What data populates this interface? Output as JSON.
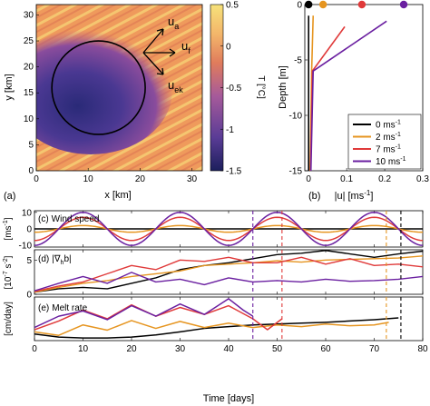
{
  "chart_data": [
    {
      "type": "heatmap",
      "panel_label": "(a)",
      "xlabel": "x [km]",
      "ylabel": "y [km]",
      "xticks": [
        0,
        10,
        20,
        30
      ],
      "yticks": [
        0,
        5,
        10,
        15,
        20,
        25,
        30
      ],
      "xlim": [
        0,
        32
      ],
      "ylim": [
        0,
        32
      ],
      "colorbar": {
        "label": "T [°C]",
        "ticks": [
          0.5,
          0,
          -0.5,
          -1,
          -1.5
        ],
        "range": [
          -1.5,
          0.5
        ],
        "colors": [
          "#1c1f5c",
          "#5a3c96",
          "#a65a9a",
          "#e07c5c",
          "#f3b56a",
          "#f6e27a"
        ]
      },
      "circle": {
        "center": [
          12,
          16
        ],
        "radius": 9
      },
      "vectors": [
        {
          "name": "u_a",
          "label": "u",
          "subscript": "a"
        },
        {
          "name": "u_f",
          "label": "u",
          "subscript": "f"
        },
        {
          "name": "u_ek",
          "label": "u",
          "subscript": "ek"
        }
      ]
    },
    {
      "type": "line",
      "panel_label": "(b)",
      "xlabel": "|u| [ms",
      "xlabel_sup": "-1",
      "xlabel_close": "]",
      "ylabel": "Depth [m]",
      "xticks": [
        0,
        0.1,
        0.2,
        0.3
      ],
      "yticks": [
        0,
        -5,
        -10,
        -15
      ],
      "xlim": [
        -0.01,
        0.3
      ],
      "ylim": [
        -15,
        0
      ],
      "series": [
        {
          "name": "0 ms",
          "unit_sup": "-1",
          "color": "#000000",
          "marker_x": 0.0,
          "x": [
            0.0,
            0.0,
            0.0
          ],
          "y": [
            -1,
            -6,
            -15
          ]
        },
        {
          "name": "2 ms",
          "unit_sup": "-1",
          "color": "#e69520",
          "marker_x": 0.038,
          "x": [
            0.012,
            0.008,
            0.004
          ],
          "y": [
            -1,
            -6,
            -15
          ]
        },
        {
          "name": "7 ms",
          "unit_sup": "-1",
          "color": "#e03a3a",
          "marker_x": 0.14,
          "x": [
            0.095,
            0.01,
            0.005
          ],
          "y": [
            -2,
            -6,
            -15
          ]
        },
        {
          "name": "10 ms",
          "unit_sup": "-1",
          "color": "#6a1fa0",
          "marker_x": 0.25,
          "x": [
            0.205,
            0.012,
            0.006
          ],
          "y": [
            -1.5,
            -6,
            -15
          ]
        }
      ]
    },
    {
      "type": "line",
      "panel_label": "(c)",
      "title": "Wind speed",
      "ylabel": "[ms",
      "ylabel_sup": "-1",
      "ylabel_close": "]",
      "yticks": [
        10,
        0,
        -10
      ],
      "ylim": [
        -11,
        11
      ],
      "xlim": [
        0,
        80
      ],
      "period_days": 20,
      "series": [
        {
          "name": "0 ms",
          "color": "#000000",
          "amplitude": 0
        },
        {
          "name": "2 ms",
          "color": "#e69520",
          "amplitude": 2
        },
        {
          "name": "7 ms",
          "color": "#e03a3a",
          "amplitude": 7
        },
        {
          "name": "10 ms",
          "color": "#6a1fa0",
          "amplitude": 10
        }
      ]
    },
    {
      "type": "line",
      "panel_label": "(d)",
      "title": "|∇",
      "title_sub": "h",
      "title_close": "b|",
      "ylabel": "[10",
      "ylabel_sup1": "-7",
      "ylabel_mid": " s",
      "ylabel_sup2": "-2",
      "ylabel_close": "]",
      "yticks": [
        0,
        5
      ],
      "ylim": [
        0,
        6.5
      ],
      "xlim": [
        0,
        80
      ],
      "series": [
        {
          "name": "0 ms",
          "color": "#000000",
          "x": [
            0,
            5,
            10,
            15,
            20,
            25,
            30,
            35,
            40,
            45,
            50,
            55,
            60,
            65,
            70,
            75,
            80
          ],
          "y": [
            0.3,
            0.8,
            1.0,
            0.8,
            1.6,
            2.4,
            3.6,
            4.2,
            4.6,
            5.2,
            5.8,
            6.0,
            6.4,
            5.9,
            5.4,
            5.9,
            6.3
          ]
        },
        {
          "name": "2 ms",
          "color": "#e69520",
          "x": [
            0,
            5,
            10,
            15,
            20,
            25,
            30,
            35,
            40,
            45,
            50,
            55,
            60,
            65,
            70,
            75,
            80
          ],
          "y": [
            0.3,
            1.0,
            1.6,
            2.0,
            2.6,
            3.0,
            3.4,
            4.2,
            4.4,
            4.6,
            4.9,
            4.7,
            5.0,
            5.1,
            5.2,
            5.3,
            5.6
          ]
        },
        {
          "name": "7 ms",
          "color": "#e03a3a",
          "x": [
            0,
            5,
            10,
            15,
            20,
            25,
            30,
            35,
            40,
            45,
            50,
            55,
            60,
            65,
            70,
            75,
            80
          ],
          "y": [
            0.4,
            1.2,
            1.8,
            3.0,
            4.2,
            3.6,
            5.0,
            4.8,
            5.4,
            4.6,
            4.6,
            5.4,
            4.4,
            5.2,
            4.2,
            4.4,
            4.0
          ]
        },
        {
          "name": "10 ms",
          "color": "#6a1fa0",
          "x": [
            0,
            5,
            10,
            15,
            20,
            25,
            30,
            35,
            40,
            45,
            50,
            55,
            60,
            65,
            70,
            75,
            80
          ],
          "y": [
            0.5,
            1.6,
            2.6,
            1.6,
            3.2,
            1.8,
            2.2,
            1.4,
            2.4,
            1.8,
            2.0,
            1.8,
            2.2,
            1.9,
            2.0,
            2.2,
            2.6
          ]
        }
      ]
    },
    {
      "type": "line",
      "panel_label": "(e)",
      "title": "Melt rate",
      "ylabel": "[cm/day]",
      "xlabel": "Time [days]",
      "xticks": [
        0,
        10,
        20,
        30,
        40,
        50,
        60,
        70,
        80
      ],
      "xlim": [
        0,
        80
      ],
      "ylim": [
        0,
        10
      ],
      "series": [
        {
          "name": "0 ms",
          "color": "#000000",
          "x": [
            0,
            5,
            10,
            15,
            20,
            25,
            30,
            35,
            40,
            45,
            50,
            55,
            60,
            65,
            70,
            75
          ],
          "y": [
            1.5,
            0.8,
            0.6,
            0.6,
            0.8,
            1.3,
            2.0,
            2.8,
            3.2,
            3.6,
            3.8,
            4.0,
            4.2,
            4.5,
            4.8,
            5.2
          ]
        },
        {
          "name": "2 ms",
          "color": "#e69520",
          "x": [
            0,
            5,
            10,
            15,
            20,
            25,
            30,
            35,
            40,
            45,
            50,
            55,
            60,
            65,
            70,
            73
          ],
          "y": [
            2.0,
            1.2,
            3.6,
            2.4,
            4.6,
            2.8,
            4.4,
            3.0,
            4.0,
            3.0,
            3.6,
            3.2,
            3.8,
            3.4,
            3.6,
            4.2
          ]
        },
        {
          "name": "7 ms",
          "color": "#e03a3a",
          "x": [
            0,
            5,
            10,
            15,
            20,
            25,
            30,
            35,
            40,
            45,
            48,
            51
          ],
          "y": [
            2.5,
            4.5,
            7.0,
            5.0,
            8.2,
            5.6,
            7.6,
            6.0,
            8.0,
            5.0,
            2.5,
            5.0
          ]
        },
        {
          "name": "10 ms",
          "color": "#6a1fa0",
          "x": [
            0,
            5,
            10,
            15,
            20,
            25,
            30,
            35,
            40,
            43,
            45
          ],
          "y": [
            3.0,
            5.6,
            6.8,
            4.8,
            8.0,
            5.6,
            8.4,
            6.0,
            9.6,
            7.0,
            5.6
          ]
        }
      ]
    },
    {
      "type": "annotation",
      "vertical_dashed_lines": [
        {
          "x": 45,
          "color": "#6a1fa0"
        },
        {
          "x": 51,
          "color": "#e03a3a"
        },
        {
          "x": 72.5,
          "color": "#e69520"
        },
        {
          "x": 75.5,
          "color": "#000000"
        }
      ]
    }
  ]
}
